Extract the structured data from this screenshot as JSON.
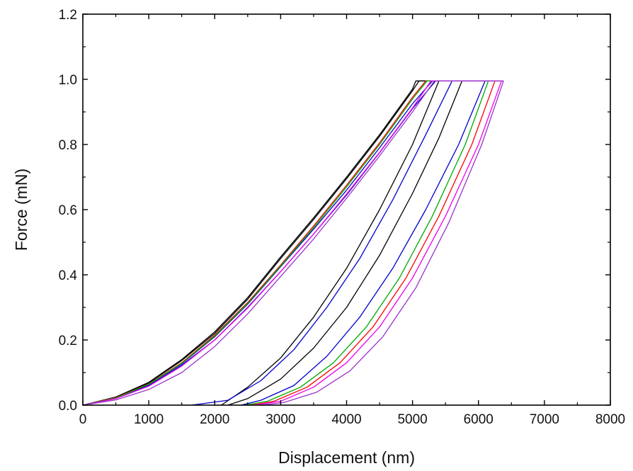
{
  "chart_data": {
    "type": "line",
    "title": "",
    "xlabel": "Displacement (nm)",
    "ylabel": "Force (mN)",
    "xlim": [
      0,
      8000
    ],
    "ylim": [
      0,
      1.2
    ],
    "xticks": [
      0,
      1000,
      2000,
      3000,
      4000,
      5000,
      6000,
      7000,
      8000
    ],
    "yticks": [
      0.0,
      0.2,
      0.4,
      0.6,
      0.8,
      1.0,
      1.2
    ],
    "xtick_labels": [
      "0",
      "1000",
      "2000",
      "3000",
      "4000",
      "5000",
      "6000",
      "7000",
      "8000"
    ],
    "ytick_labels": [
      "0.0",
      "0.2",
      "0.4",
      "0.6",
      "0.8",
      "1.0",
      "1.2"
    ],
    "grid": false,
    "legend": "none",
    "series": [
      {
        "color": "#000000",
        "loading": [
          [
            0,
            0
          ],
          [
            500,
            0.025
          ],
          [
            1000,
            0.07
          ],
          [
            1500,
            0.14
          ],
          [
            2000,
            0.225
          ],
          [
            2500,
            0.33
          ],
          [
            3000,
            0.455
          ],
          [
            3500,
            0.575
          ],
          [
            4000,
            0.7
          ],
          [
            4500,
            0.83
          ],
          [
            5000,
            0.97
          ],
          [
            5050,
            0.995
          ]
        ],
        "hold": [
          [
            5050,
            0.995
          ],
          [
            5400,
            0.995
          ]
        ],
        "unloading": [
          [
            5400,
            0.995
          ],
          [
            5000,
            0.8
          ],
          [
            4500,
            0.6
          ],
          [
            4000,
            0.42
          ],
          [
            3500,
            0.27
          ],
          [
            3000,
            0.145
          ],
          [
            2500,
            0.055
          ],
          [
            2100,
            0.0
          ]
        ]
      },
      {
        "color": "#000000",
        "loading": [
          [
            0,
            0
          ],
          [
            500,
            0.024
          ],
          [
            1000,
            0.068
          ],
          [
            1500,
            0.137
          ],
          [
            2000,
            0.22
          ],
          [
            2500,
            0.325
          ],
          [
            3000,
            0.45
          ],
          [
            3500,
            0.57
          ],
          [
            4000,
            0.695
          ],
          [
            4500,
            0.825
          ],
          [
            5000,
            0.965
          ],
          [
            5100,
            0.995
          ]
        ],
        "hold": [
          [
            5100,
            0.995
          ],
          [
            5750,
            0.995
          ]
        ],
        "unloading": [
          [
            5750,
            0.995
          ],
          [
            5400,
            0.82
          ],
          [
            5000,
            0.65
          ],
          [
            4500,
            0.46
          ],
          [
            4000,
            0.3
          ],
          [
            3500,
            0.175
          ],
          [
            3000,
            0.08
          ],
          [
            2500,
            0.02
          ],
          [
            2200,
            0.0
          ]
        ]
      },
      {
        "color": "#0000cc",
        "loading": [
          [
            0,
            0
          ],
          [
            500,
            0.022
          ],
          [
            1000,
            0.063
          ],
          [
            1500,
            0.127
          ],
          [
            2000,
            0.21
          ],
          [
            2500,
            0.31
          ],
          [
            3000,
            0.425
          ],
          [
            3500,
            0.54
          ],
          [
            4000,
            0.66
          ],
          [
            4500,
            0.79
          ],
          [
            5000,
            0.925
          ],
          [
            5300,
            0.995
          ]
        ],
        "hold": [
          [
            5300,
            0.995
          ],
          [
            5600,
            0.995
          ]
        ],
        "unloading": [
          [
            5600,
            0.995
          ],
          [
            5200,
            0.83
          ],
          [
            4700,
            0.63
          ],
          [
            4200,
            0.45
          ],
          [
            3700,
            0.3
          ],
          [
            3200,
            0.17
          ],
          [
            2700,
            0.075
          ],
          [
            2200,
            0.015
          ],
          [
            1650,
            0.0
          ]
        ]
      },
      {
        "color": "#0000cc",
        "loading": [
          [
            0,
            0
          ],
          [
            500,
            0.021
          ],
          [
            1000,
            0.06
          ],
          [
            1500,
            0.123
          ],
          [
            2000,
            0.2
          ],
          [
            2500,
            0.3
          ],
          [
            3000,
            0.41
          ],
          [
            3500,
            0.525
          ],
          [
            4000,
            0.645
          ],
          [
            4500,
            0.775
          ],
          [
            5000,
            0.91
          ],
          [
            5350,
            0.995
          ]
        ],
        "hold": [
          [
            5350,
            0.995
          ],
          [
            6100,
            0.995
          ]
        ],
        "unloading": [
          [
            6100,
            0.995
          ],
          [
            5700,
            0.8
          ],
          [
            5200,
            0.6
          ],
          [
            4700,
            0.42
          ],
          [
            4200,
            0.27
          ],
          [
            3700,
            0.15
          ],
          [
            3200,
            0.06
          ],
          [
            2700,
            0.015
          ],
          [
            2400,
            0.0
          ]
        ]
      },
      {
        "color": "#ff0000",
        "loading": [
          [
            0,
            0
          ],
          [
            500,
            0.023
          ],
          [
            1000,
            0.065
          ],
          [
            1500,
            0.13
          ],
          [
            2000,
            0.215
          ],
          [
            2500,
            0.315
          ],
          [
            3000,
            0.43
          ],
          [
            3500,
            0.55
          ],
          [
            4000,
            0.675
          ],
          [
            4500,
            0.805
          ],
          [
            5000,
            0.945
          ],
          [
            5200,
            0.995
          ]
        ],
        "hold": [
          [
            5200,
            0.995
          ],
          [
            6250,
            0.995
          ]
        ],
        "unloading": [
          [
            6250,
            0.995
          ],
          [
            5900,
            0.8
          ],
          [
            5400,
            0.58
          ],
          [
            4900,
            0.39
          ],
          [
            4400,
            0.24
          ],
          [
            3900,
            0.13
          ],
          [
            3400,
            0.055
          ],
          [
            2900,
            0.012
          ],
          [
            2550,
            0.0
          ]
        ]
      },
      {
        "color": "#00aa00",
        "loading": [
          [
            0,
            0
          ],
          [
            500,
            0.022
          ],
          [
            1000,
            0.064
          ],
          [
            1500,
            0.128
          ],
          [
            2000,
            0.212
          ],
          [
            2500,
            0.312
          ],
          [
            3000,
            0.427
          ],
          [
            3500,
            0.545
          ],
          [
            4000,
            0.67
          ],
          [
            4500,
            0.8
          ],
          [
            5000,
            0.94
          ],
          [
            5220,
            0.995
          ]
        ],
        "hold": [
          [
            5220,
            0.995
          ],
          [
            6150,
            0.995
          ]
        ],
        "unloading": [
          [
            6150,
            0.995
          ],
          [
            5800,
            0.8
          ],
          [
            5300,
            0.58
          ],
          [
            4800,
            0.39
          ],
          [
            4300,
            0.24
          ],
          [
            3800,
            0.13
          ],
          [
            3300,
            0.055
          ],
          [
            2800,
            0.012
          ],
          [
            2450,
            0.0
          ]
        ]
      },
      {
        "color": "#ee00ee",
        "loading": [
          [
            0,
            0
          ],
          [
            500,
            0.02
          ],
          [
            1000,
            0.058
          ],
          [
            1500,
            0.12
          ],
          [
            2000,
            0.2
          ],
          [
            2500,
            0.298
          ],
          [
            3000,
            0.41
          ],
          [
            3500,
            0.525
          ],
          [
            4000,
            0.648
          ],
          [
            4500,
            0.776
          ],
          [
            5000,
            0.912
          ],
          [
            5280,
            0.995
          ]
        ],
        "hold": [
          [
            5280,
            0.995
          ],
          [
            6350,
            0.995
          ]
        ],
        "unloading": [
          [
            6350,
            0.995
          ],
          [
            6000,
            0.8
          ],
          [
            5500,
            0.58
          ],
          [
            5000,
            0.39
          ],
          [
            4500,
            0.24
          ],
          [
            4000,
            0.13
          ],
          [
            3500,
            0.055
          ],
          [
            3000,
            0.012
          ],
          [
            2600,
            0.0
          ]
        ]
      },
      {
        "color": "#9933cc",
        "loading": [
          [
            0,
            0
          ],
          [
            500,
            0.016
          ],
          [
            1000,
            0.048
          ],
          [
            1500,
            0.1
          ],
          [
            2000,
            0.18
          ],
          [
            2500,
            0.28
          ],
          [
            3000,
            0.395
          ],
          [
            3500,
            0.51
          ],
          [
            4000,
            0.635
          ],
          [
            4500,
            0.765
          ],
          [
            5000,
            0.9
          ],
          [
            5330,
            0.995
          ]
        ],
        "hold": [
          [
            5330,
            0.995
          ],
          [
            6380,
            0.995
          ]
        ],
        "unloading": [
          [
            6380,
            0.995
          ],
          [
            6050,
            0.8
          ],
          [
            5550,
            0.56
          ],
          [
            5050,
            0.36
          ],
          [
            4550,
            0.21
          ],
          [
            4050,
            0.105
          ],
          [
            3550,
            0.04
          ],
          [
            3050,
            0.008
          ],
          [
            2700,
            0.0
          ]
        ]
      }
    ]
  }
}
